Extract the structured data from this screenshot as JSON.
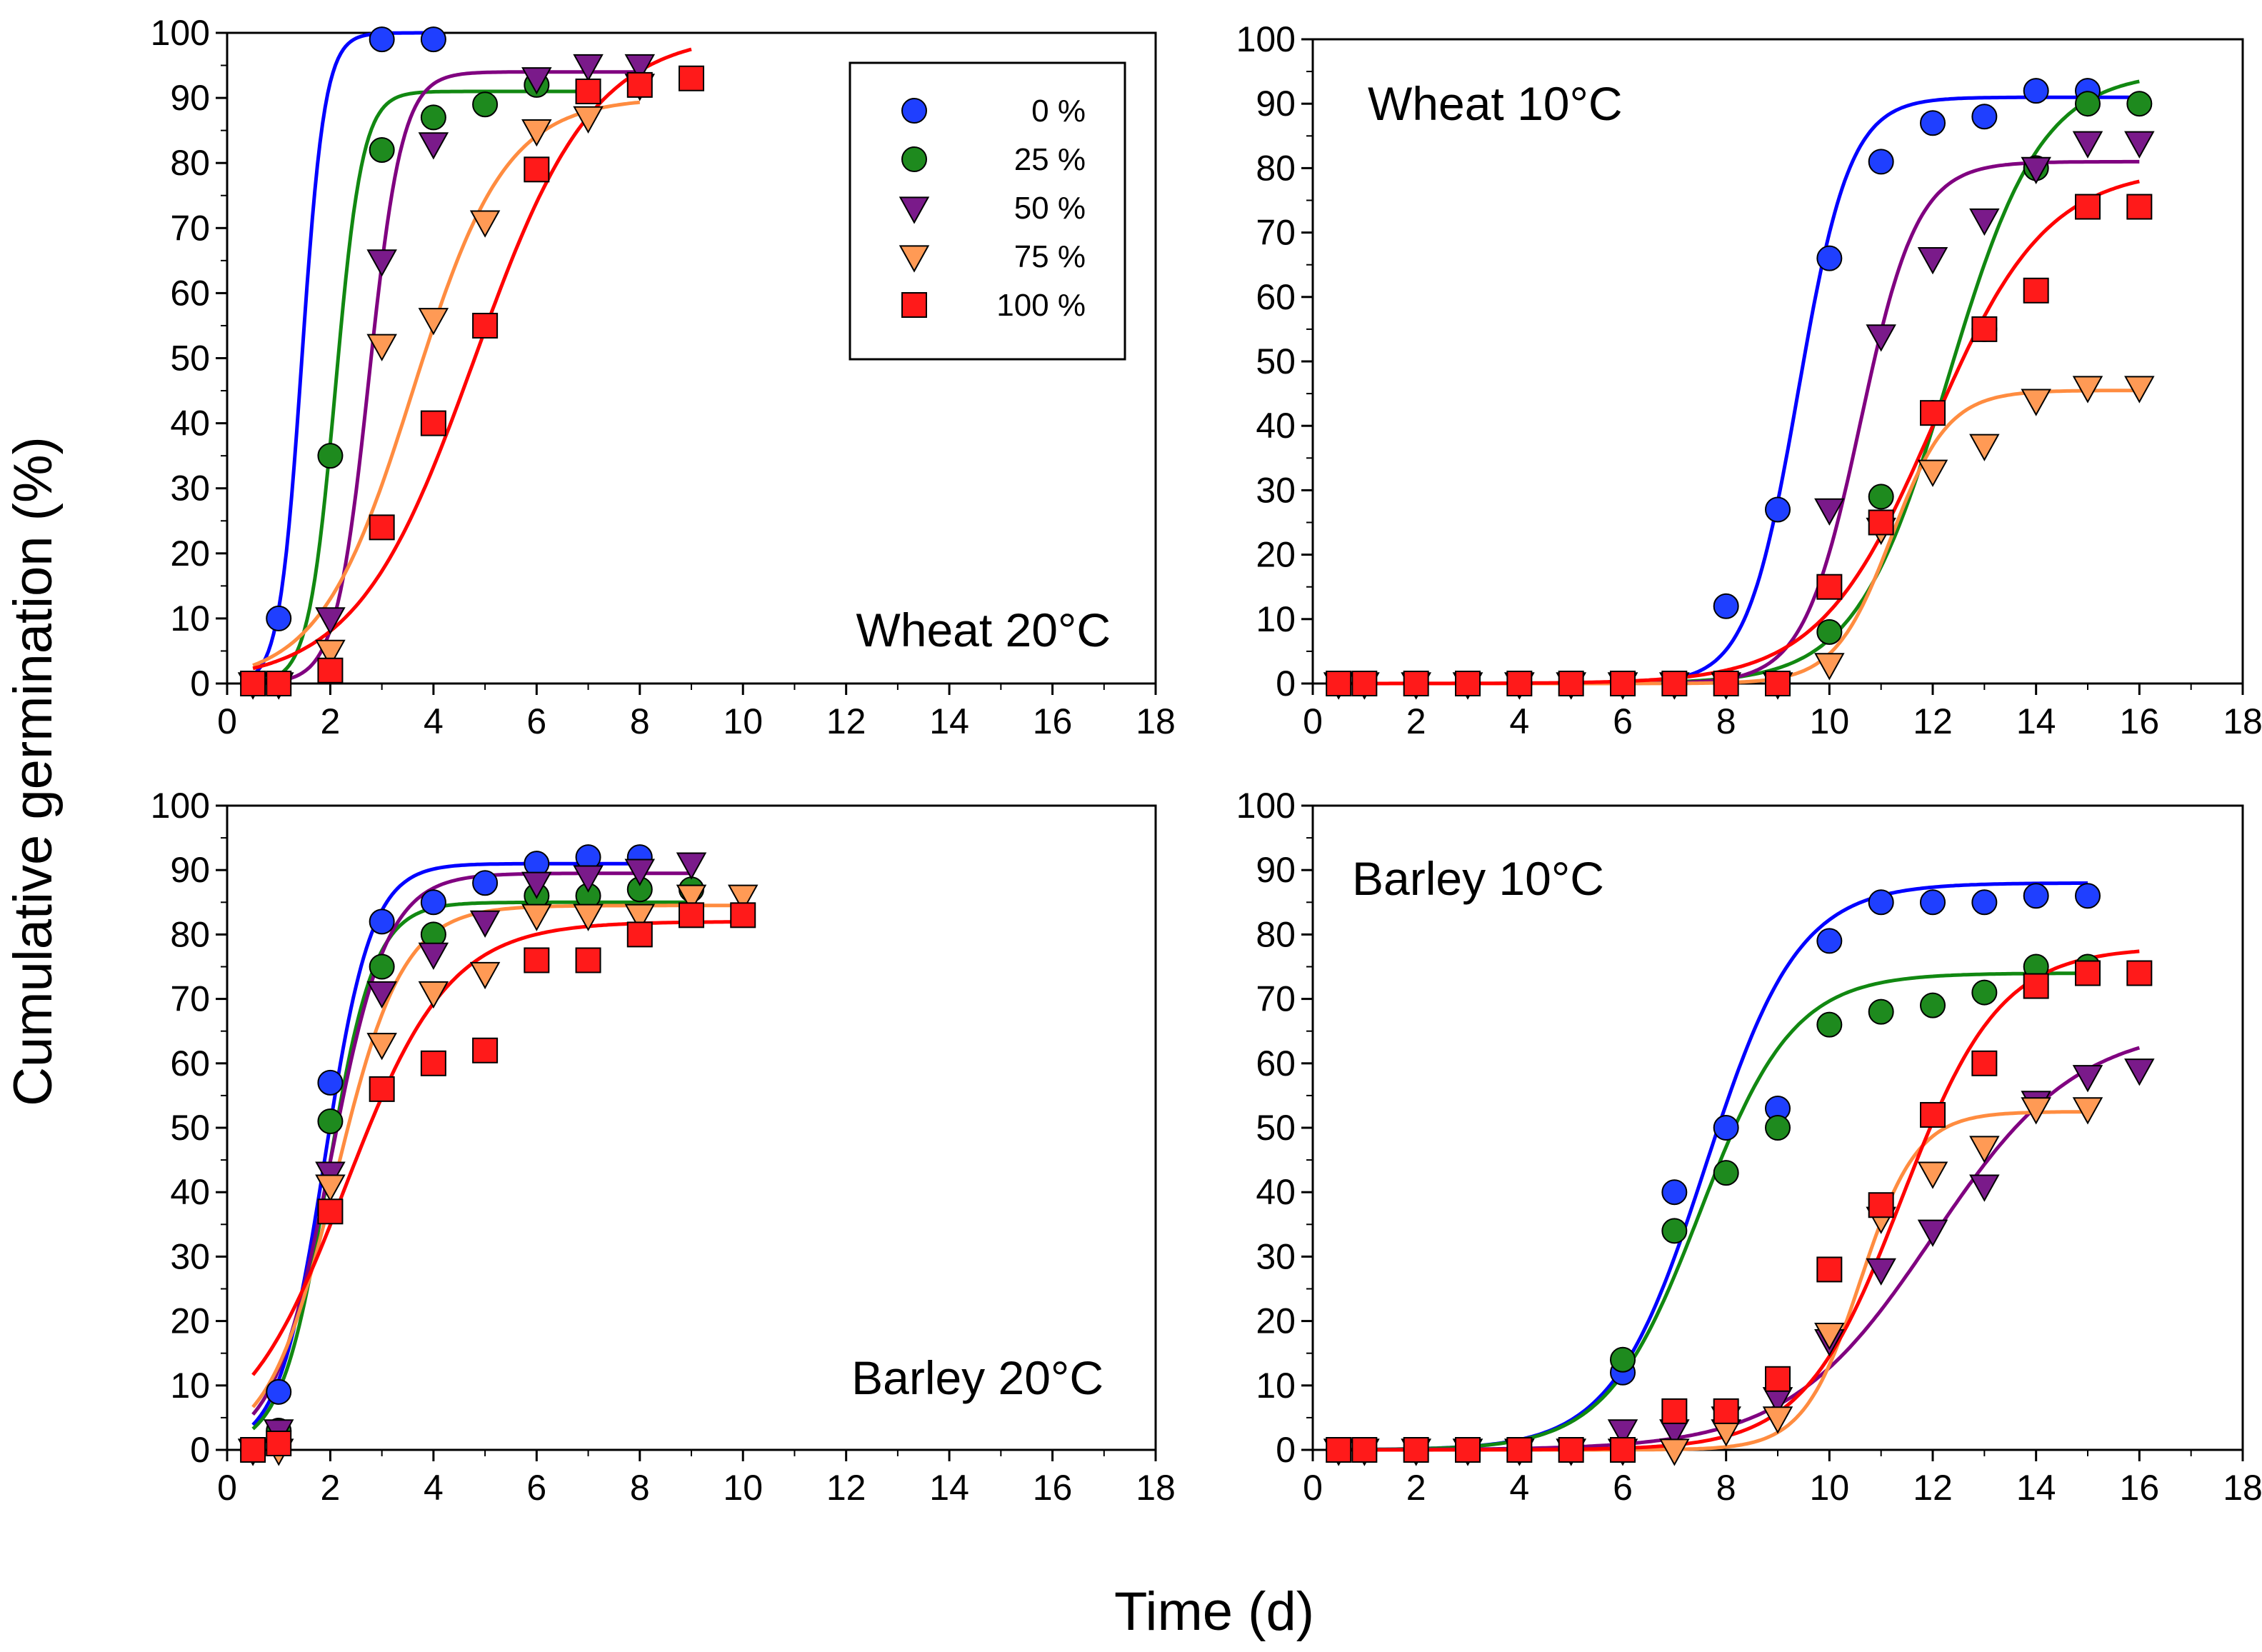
{
  "figure": {
    "ylabel": "Cumulative germination (%)",
    "xlabel": "Time (d)"
  },
  "legend": {
    "entries": [
      {
        "label": "0 %",
        "marker": "circle",
        "color": "#1f3fff"
      },
      {
        "label": "25 %",
        "marker": "circle",
        "color": "#1e8a1e"
      },
      {
        "label": "50 %",
        "marker": "triangle-down",
        "color": "#7a1a8a"
      },
      {
        "label": "75 %",
        "marker": "triangle-down",
        "color": "#ff9a55"
      },
      {
        "label": "100 %",
        "marker": "square",
        "color": "#ff1a1a"
      }
    ]
  },
  "colors": {
    "s0": "#1f3fff",
    "s25": "#1e8a1e",
    "s50": "#7a1a8a",
    "s75": "#ff9a55",
    "s100": "#ff1a1a",
    "line0": "#0000ff",
    "line25": "#118811",
    "line50": "#800080",
    "line75": "#ff8c40",
    "line100": "#ff0000"
  },
  "chart_data": [
    {
      "type": "scatter",
      "title": "Wheat 20°C",
      "xlim": [
        0,
        18
      ],
      "ylim": [
        0,
        100
      ],
      "xticks": [
        "0",
        "2",
        "4",
        "6",
        "8",
        "10",
        "12",
        "14",
        "16",
        "18"
      ],
      "yticks": [
        "0",
        "10",
        "20",
        "30",
        "40",
        "50",
        "60",
        "70",
        "80",
        "90",
        "100"
      ],
      "series": [
        {
          "name": "0 %",
          "x": [
            0.5,
            1,
            3,
            4
          ],
          "y": [
            0,
            10,
            99,
            99
          ],
          "fit": {
            "A": 100,
            "t50": 1.45,
            "k": 0.22,
            "xmax": 4
          }
        },
        {
          "name": "25 %",
          "x": [
            0.5,
            1,
            2,
            3,
            4,
            5,
            6,
            7
          ],
          "y": [
            0,
            0,
            35,
            82,
            87,
            89,
            92,
            91
          ],
          "fit": {
            "A": 91,
            "t50": 2.1,
            "k": 0.26,
            "xmax": 7
          }
        },
        {
          "name": "50 %",
          "x": [
            0.5,
            1,
            2,
            3,
            4,
            6,
            7,
            8
          ],
          "y": [
            0,
            0,
            10,
            65,
            83,
            93,
            95,
            95
          ],
          "fit": {
            "A": 94,
            "t50": 2.75,
            "k": 0.32,
            "xmax": 8
          }
        },
        {
          "name": "75 %",
          "x": [
            0.5,
            1,
            2,
            3,
            4,
            5,
            6,
            7,
            8
          ],
          "y": [
            0,
            0,
            5,
            52,
            56,
            71,
            85,
            87,
            92
          ],
          "fit": {
            "A": 90,
            "t50": 3.6,
            "k": 0.9,
            "xmax": 8
          }
        },
        {
          "name": "100 %",
          "x": [
            0.5,
            1,
            2,
            3,
            4,
            5,
            6,
            7,
            8,
            9
          ],
          "y": [
            0,
            0,
            2,
            24,
            40,
            55,
            79,
            91,
            92,
            93
          ],
          "fit": {
            "A": 100,
            "t50": 4.8,
            "k": 1.15,
            "xmax": 9
          }
        }
      ]
    },
    {
      "type": "scatter",
      "title": "Wheat 10°C",
      "xlim": [
        0,
        18
      ],
      "ylim": [
        0,
        100
      ],
      "xticks": [
        "0",
        "2",
        "4",
        "6",
        "8",
        "10",
        "12",
        "14",
        "16",
        "18"
      ],
      "yticks": [
        "0",
        "10",
        "20",
        "30",
        "40",
        "50",
        "60",
        "70",
        "80",
        "90",
        "100"
      ],
      "series": [
        {
          "name": "0 %",
          "x": [
            0.5,
            1,
            2,
            3,
            4,
            5,
            6,
            7,
            8,
            9,
            10,
            11,
            12,
            13,
            14,
            15
          ],
          "y": [
            0,
            0,
            0,
            0,
            0,
            0,
            0,
            0,
            12,
            27,
            66,
            81,
            87,
            88,
            92,
            92
          ],
          "fit": {
            "A": 91,
            "t50": 9.4,
            "k": 0.5,
            "xmax": 16
          }
        },
        {
          "name": "25 %",
          "x": [
            0.5,
            1,
            2,
            3,
            4,
            5,
            6,
            7,
            8,
            9,
            10,
            11,
            12,
            13,
            14,
            15,
            16
          ],
          "y": [
            0,
            0,
            0,
            0,
            0,
            0,
            0,
            0,
            0,
            0,
            8,
            29,
            42,
            55,
            80,
            90,
            90
          ],
          "fit": {
            "A": 95,
            "t50": 12.3,
            "k": 0.9,
            "xmax": 16
          }
        },
        {
          "name": "50 %",
          "x": [
            0.5,
            1,
            2,
            3,
            4,
            5,
            6,
            7,
            8,
            9,
            10,
            11,
            12,
            13,
            14,
            15,
            16
          ],
          "y": [
            0,
            0,
            0,
            0,
            0,
            0,
            0,
            0,
            0,
            0,
            27,
            54,
            66,
            72,
            80,
            84,
            84
          ],
          "fit": {
            "A": 81,
            "t50": 10.6,
            "k": 0.55,
            "xmax": 16
          }
        },
        {
          "name": "75 %",
          "x": [
            0.5,
            1,
            2,
            3,
            4,
            5,
            6,
            7,
            8,
            9,
            10,
            11,
            12,
            13,
            14,
            15,
            16
          ],
          "y": [
            0,
            0,
            0,
            0,
            0,
            0,
            0,
            0,
            0,
            0,
            3,
            24,
            33,
            37,
            44,
            46,
            46
          ],
          "fit": {
            "A": 45.5,
            "t50": 11.2,
            "k": 0.55,
            "xmax": 16
          }
        },
        {
          "name": "100 %",
          "x": [
            0.5,
            1,
            2,
            3,
            4,
            5,
            6,
            7,
            8,
            9,
            10,
            11,
            12,
            13,
            14,
            15,
            16
          ],
          "y": [
            0,
            0,
            0,
            0,
            0,
            0,
            0,
            0,
            0,
            0,
            15,
            25,
            42,
            55,
            61,
            74,
            74
          ],
          "fit": {
            "A": 80,
            "t50": 12.0,
            "k": 1.1,
            "xmax": 16
          }
        }
      ]
    },
    {
      "type": "scatter",
      "title": "Barley 20°C",
      "xlim": [
        0,
        18
      ],
      "ylim": [
        0,
        100
      ],
      "xticks": [
        "0",
        "2",
        "4",
        "6",
        "8",
        "10",
        "12",
        "14",
        "16",
        "18"
      ],
      "yticks": [
        "0",
        "10",
        "20",
        "30",
        "40",
        "50",
        "60",
        "70",
        "80",
        "90",
        "100"
      ],
      "series": [
        {
          "name": "0 %",
          "x": [
            0.5,
            1,
            2,
            3,
            4,
            5,
            6,
            7,
            8
          ],
          "y": [
            0,
            9,
            57,
            82,
            85,
            88,
            91,
            92,
            92
          ],
          "fit": {
            "A": 91,
            "t50": 1.9,
            "k": 0.45,
            "xmax": 8
          }
        },
        {
          "name": "25 %",
          "x": [
            0.5,
            1,
            2,
            3,
            4,
            6,
            7,
            8,
            9
          ],
          "y": [
            0,
            3,
            51,
            75,
            80,
            86,
            86,
            87,
            87
          ],
          "fit": {
            "A": 85,
            "t50": 1.95,
            "k": 0.45,
            "xmax": 9
          }
        },
        {
          "name": "50 %",
          "x": [
            0.5,
            1,
            2,
            3,
            4,
            5,
            6,
            7,
            8,
            9
          ],
          "y": [
            0,
            3,
            43,
            71,
            77,
            82,
            88,
            89,
            90,
            91
          ],
          "fit": {
            "A": 89.5,
            "t50": 2.0,
            "k": 0.55,
            "xmax": 9
          }
        },
        {
          "name": "75 %",
          "x": [
            0.5,
            1,
            2,
            3,
            4,
            5,
            6,
            7,
            8,
            9,
            10
          ],
          "y": [
            0,
            0,
            41,
            63,
            71,
            74,
            83,
            83,
            83,
            86,
            86
          ],
          "fit": {
            "A": 84.5,
            "t50": 2.1,
            "k": 0.65,
            "xmax": 10
          }
        },
        {
          "name": "100 %",
          "x": [
            0.5,
            1,
            2,
            3,
            4,
            5,
            6,
            7,
            8,
            9,
            10
          ],
          "y": [
            0,
            1,
            37,
            56,
            60,
            62,
            76,
            76,
            80,
            83,
            83
          ],
          "fit": {
            "A": 82,
            "t50": 2.3,
            "k": 1.0,
            "xmax": 10
          }
        }
      ]
    },
    {
      "type": "scatter",
      "title": "Barley 10°C",
      "xlim": [
        0,
        18
      ],
      "ylim": [
        0,
        100
      ],
      "xticks": [
        "0",
        "2",
        "4",
        "6",
        "8",
        "10",
        "12",
        "14",
        "16",
        "18"
      ],
      "yticks": [
        "0",
        "10",
        "20",
        "30",
        "40",
        "50",
        "60",
        "70",
        "80",
        "90",
        "100"
      ],
      "series": [
        {
          "name": "0 %",
          "x": [
            0.5,
            1,
            2,
            3,
            4,
            5,
            6,
            7,
            8,
            9,
            10,
            11,
            12,
            13,
            14,
            15
          ],
          "y": [
            0,
            0,
            0,
            0,
            0,
            0,
            12,
            40,
            50,
            53,
            79,
            85,
            85,
            85,
            86,
            86
          ],
          "fit": {
            "A": 88,
            "t50": 7.6,
            "k": 0.9,
            "xmax": 15
          }
        },
        {
          "name": "25 %",
          "x": [
            0.5,
            1,
            2,
            3,
            4,
            5,
            6,
            7,
            8,
            9,
            10,
            11,
            12,
            13,
            14,
            15
          ],
          "y": [
            0,
            0,
            0,
            0,
            0,
            0,
            14,
            34,
            43,
            50,
            66,
            68,
            69,
            71,
            75,
            75
          ],
          "fit": {
            "A": 74,
            "t50": 7.5,
            "k": 0.9,
            "xmax": 15
          }
        },
        {
          "name": "50 %",
          "x": [
            0.5,
            1,
            2,
            3,
            4,
            5,
            6,
            7,
            8,
            9,
            10,
            11,
            12,
            13,
            14,
            15,
            16
          ],
          "y": [
            0,
            0,
            0,
            0,
            0,
            0,
            3,
            3,
            5,
            8,
            17,
            28,
            34,
            41,
            54,
            58,
            59
          ],
          "fit": {
            "A": 66,
            "t50": 12.0,
            "k": 1.4,
            "xmax": 16
          }
        },
        {
          "name": "75 %",
          "x": [
            0.5,
            1,
            2,
            3,
            4,
            5,
            6,
            7,
            8,
            9,
            10,
            11,
            12,
            13,
            14,
            15
          ],
          "y": [
            0,
            0,
            0,
            0,
            0,
            0,
            0,
            0,
            3,
            5,
            18,
            36,
            43,
            47,
            53,
            53
          ],
          "fit": {
            "A": 52.5,
            "t50": 10.6,
            "k": 0.55,
            "xmax": 15
          }
        },
        {
          "name": "100 %",
          "x": [
            0.5,
            1,
            2,
            3,
            4,
            5,
            6,
            7,
            8,
            9,
            10,
            11,
            12,
            13,
            14,
            15,
            16
          ],
          "y": [
            0,
            0,
            0,
            0,
            0,
            0,
            0,
            6,
            6,
            11,
            28,
            38,
            52,
            60,
            72,
            74,
            74
          ],
          "fit": {
            "A": 78,
            "t50": 11.4,
            "k": 0.95,
            "xmax": 16
          }
        }
      ]
    }
  ]
}
